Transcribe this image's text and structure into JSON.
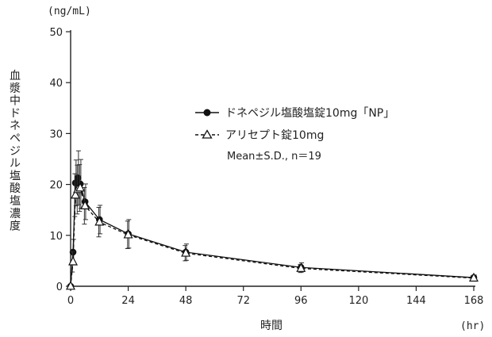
{
  "chart_data": {
    "type": "line",
    "y_unit": "(ng/mL)",
    "x_unit": "(hr)",
    "xlabel": "時間",
    "ylabel": "血漿中ドネペジル塩酸塩濃度",
    "xlim": [
      0,
      168
    ],
    "ylim": [
      0,
      50
    ],
    "x_ticks": [
      0,
      24,
      48,
      72,
      96,
      120,
      144,
      168
    ],
    "y_ticks": [
      0,
      10,
      20,
      30,
      40,
      50
    ],
    "grid": false,
    "legend_position": "top-right",
    "legend_note": "Mean±S.D., n＝19",
    "series": [
      {
        "name": "ドネペジル塩酸塩錠10mg「NP」",
        "marker": "filled-circle",
        "line_style": "solid",
        "x": [
          0,
          1,
          2,
          3,
          4,
          6,
          12,
          24,
          48,
          96,
          168
        ],
        "y": [
          0,
          6.7,
          20.3,
          21.3,
          20.1,
          16.6,
          13.1,
          10.3,
          6.7,
          3.7,
          1.7
        ],
        "sd": [
          0,
          2.5,
          4.5,
          5.3,
          4.8,
          3.5,
          2.8,
          2.8,
          1.6,
          0.9,
          0.5
        ]
      },
      {
        "name": "アリセプト錠10mg",
        "marker": "open-triangle",
        "line_style": "dashed",
        "x": [
          0,
          1,
          2,
          3,
          4,
          6,
          12,
          24,
          48,
          96,
          168
        ],
        "y": [
          0,
          4.8,
          17.9,
          19.0,
          19.3,
          15.8,
          12.6,
          10.1,
          6.5,
          3.5,
          1.6
        ],
        "sd": [
          0,
          2.0,
          4.2,
          4.8,
          4.6,
          3.6,
          2.9,
          2.7,
          1.5,
          0.8,
          0.5
        ]
      }
    ]
  }
}
